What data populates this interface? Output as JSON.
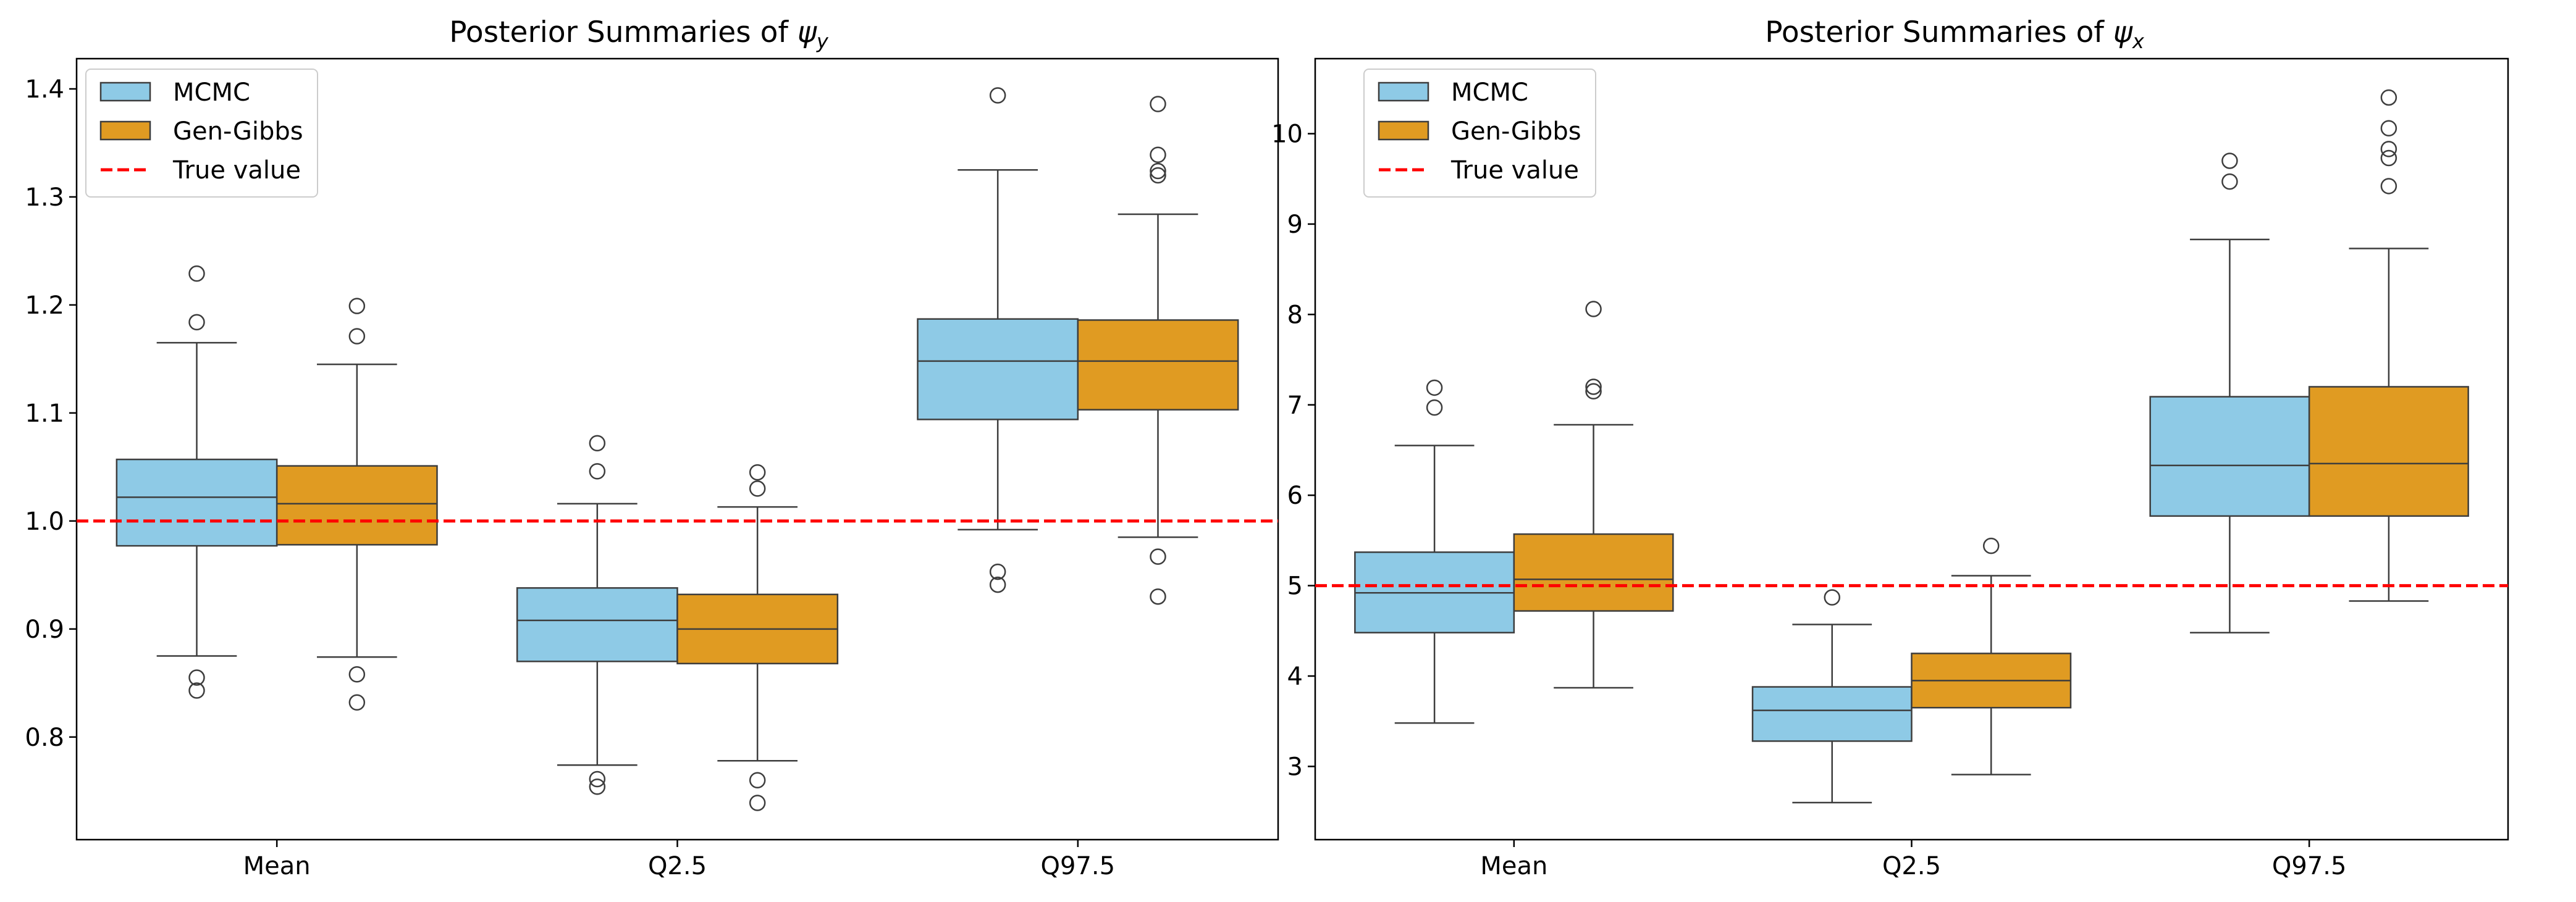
{
  "figure": {
    "legend_labels": {
      "mcmc": "MCMC",
      "gengibbs": "Gen-Gibbs",
      "truth": "True value"
    },
    "colors": {
      "mcmc": "#8ecae6",
      "gengibbs": "#e09b22",
      "truth": "#ff0000",
      "line": "#3d3d3d"
    }
  },
  "chart_data": [
    {
      "type": "box",
      "title_prefix": "Posterior Summaries of ",
      "title_symbol": "ψ",
      "title_subscript": "y",
      "categories": [
        "Mean",
        "Q2.5",
        "Q97.5"
      ],
      "yticks": [
        0.8,
        0.9,
        1.0,
        1.1,
        1.2,
        1.3,
        1.4
      ],
      "ytick_labels": [
        "0.8",
        "0.9",
        "1.0",
        "1.1",
        "1.2",
        "1.3",
        "1.4"
      ],
      "ylim": [
        0.705,
        1.428
      ],
      "true_value": 1.0,
      "legend_position": "top-left",
      "series": [
        {
          "name": "MCMC",
          "boxes": [
            {
              "whislo": 0.875,
              "q1": 0.977,
              "med": 1.022,
              "q3": 1.057,
              "whishi": 1.165,
              "fliers": [
                0.843,
                0.855,
                1.184,
                1.229
              ]
            },
            {
              "whislo": 0.774,
              "q1": 0.87,
              "med": 0.908,
              "q3": 0.938,
              "whishi": 1.016,
              "fliers": [
                0.754,
                0.761,
                1.046,
                1.072
              ]
            },
            {
              "whislo": 0.992,
              "q1": 1.094,
              "med": 1.148,
              "q3": 1.187,
              "whishi": 1.325,
              "fliers": [
                0.941,
                0.953,
                1.394
              ]
            }
          ]
        },
        {
          "name": "Gen-Gibbs",
          "boxes": [
            {
              "whislo": 0.874,
              "q1": 0.978,
              "med": 1.016,
              "q3": 1.051,
              "whishi": 1.145,
              "fliers": [
                0.832,
                0.858,
                1.171,
                1.199
              ]
            },
            {
              "whislo": 0.778,
              "q1": 0.868,
              "med": 0.9,
              "q3": 0.932,
              "whishi": 1.013,
              "fliers": [
                0.739,
                0.76,
                1.03,
                1.045
              ]
            },
            {
              "whislo": 0.985,
              "q1": 1.103,
              "med": 1.148,
              "q3": 1.186,
              "whishi": 1.284,
              "fliers": [
                0.93,
                0.967,
                1.32,
                1.324,
                1.339,
                1.386
              ]
            }
          ]
        }
      ]
    },
    {
      "type": "box",
      "title_prefix": "Posterior Summaries of ",
      "title_symbol": "ψ",
      "title_subscript": "x",
      "categories": [
        "Mean",
        "Q2.5",
        "Q97.5"
      ],
      "yticks": [
        3,
        4,
        5,
        6,
        7,
        8,
        9,
        10
      ],
      "ytick_labels": [
        "3",
        "4",
        "5",
        "6",
        "7",
        "8",
        "9",
        "10"
      ],
      "ylim": [
        2.19,
        10.83
      ],
      "true_value": 5.0,
      "legend_position": "top-left",
      "series": [
        {
          "name": "MCMC",
          "boxes": [
            {
              "whislo": 3.48,
              "q1": 4.48,
              "med": 4.92,
              "q3": 5.37,
              "whishi": 6.55,
              "fliers": [
                6.97,
                7.19
              ]
            },
            {
              "whislo": 2.6,
              "q1": 3.28,
              "med": 3.62,
              "q3": 3.88,
              "whishi": 4.57,
              "fliers": [
                4.87
              ]
            },
            {
              "whislo": 4.48,
              "q1": 5.77,
              "med": 6.33,
              "q3": 7.09,
              "whishi": 8.83,
              "fliers": [
                9.47,
                9.7
              ]
            }
          ]
        },
        {
          "name": "Gen-Gibbs",
          "boxes": [
            {
              "whislo": 3.87,
              "q1": 4.72,
              "med": 5.07,
              "q3": 5.57,
              "whishi": 6.78,
              "fliers": [
                7.15,
                7.2,
                8.06
              ]
            },
            {
              "whislo": 2.91,
              "q1": 3.65,
              "med": 3.95,
              "q3": 4.25,
              "whishi": 5.11,
              "fliers": [
                5.44
              ]
            },
            {
              "whislo": 4.83,
              "q1": 5.77,
              "med": 6.35,
              "q3": 7.2,
              "whishi": 8.73,
              "fliers": [
                9.42,
                9.73,
                9.83,
                10.06,
                10.4
              ]
            }
          ]
        }
      ]
    }
  ]
}
